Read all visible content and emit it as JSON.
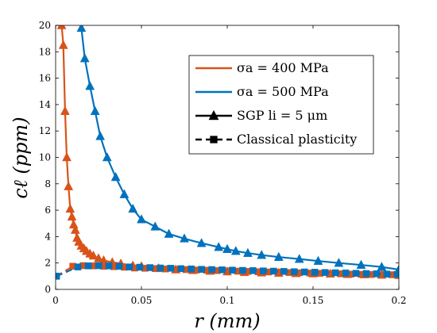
{
  "chart_data": {
    "type": "line",
    "xlabel": "r (mm)",
    "ylabel": "cℓ (ppm)",
    "xlim": [
      0,
      0.2
    ],
    "ylim": [
      0,
      20
    ],
    "xticks": [
      0,
      0.05,
      0.1,
      0.15,
      0.2
    ],
    "xtick_labels": [
      "0",
      "0.05",
      "0.1",
      "0.15",
      "0.2"
    ],
    "yticks": [
      0,
      2,
      4,
      6,
      8,
      10,
      12,
      14,
      16,
      18,
      20
    ],
    "ytick_labels": [
      "0",
      "2",
      "4",
      "6",
      "8",
      "10",
      "12",
      "14",
      "16",
      "18",
      "20"
    ],
    "grid": false,
    "legend_position": "top-right",
    "colors": {
      "orange": "#D95319",
      "blue": "#0072BD",
      "black": "#000000"
    },
    "legend": [
      {
        "label": "σa = 400 MPa",
        "color": "#D95319",
        "style": "solid",
        "marker": "none"
      },
      {
        "label": "σa = 500 MPa",
        "color": "#0072BD",
        "style": "solid",
        "marker": "none"
      },
      {
        "label": "SGP li = 5 μm",
        "color": "#000000",
        "style": "solid",
        "marker": "triangle"
      },
      {
        "label": "Classical plasticity",
        "color": "#000000",
        "style": "dashed",
        "marker": "square"
      }
    ],
    "series": [
      {
        "color": "#D95319",
        "style": "solid",
        "marker": "triangle",
        "x": [
          0.0035,
          0.0045,
          0.0055,
          0.0065,
          0.0075,
          0.0085,
          0.0095,
          0.0105,
          0.0115,
          0.0125,
          0.0135,
          0.015,
          0.0165,
          0.018,
          0.02,
          0.022,
          0.025,
          0.028,
          0.033,
          0.038,
          0.045,
          0.05,
          0.06,
          0.07,
          0.08,
          0.09,
          0.1,
          0.11,
          0.12,
          0.13,
          0.14,
          0.15,
          0.16,
          0.17,
          0.18,
          0.19,
          0.2
        ],
        "y": [
          20,
          18.5,
          13.5,
          10,
          7.8,
          6.1,
          5.5,
          4.9,
          4.5,
          3.9,
          3.6,
          3.3,
          3.1,
          2.9,
          2.7,
          2.55,
          2.35,
          2.2,
          2.05,
          1.95,
          1.8,
          1.75,
          1.6,
          1.5,
          1.45,
          1.4,
          1.35,
          1.3,
          1.27,
          1.25,
          1.22,
          1.2,
          1.18,
          1.15,
          1.13,
          1.1,
          1.08
        ]
      },
      {
        "color": "#0072BD",
        "style": "solid",
        "marker": "triangle",
        "x": [
          0.015,
          0.017,
          0.02,
          0.023,
          0.026,
          0.03,
          0.035,
          0.04,
          0.045,
          0.05,
          0.058,
          0.066,
          0.075,
          0.085,
          0.095,
          0.1,
          0.105,
          0.112,
          0.12,
          0.13,
          0.142,
          0.153,
          0.165,
          0.178,
          0.19,
          0.2
        ],
        "y": [
          19.8,
          17.5,
          15.4,
          13.5,
          11.6,
          10.0,
          8.5,
          7.2,
          6.1,
          5.3,
          4.75,
          4.2,
          3.85,
          3.5,
          3.2,
          3.05,
          2.9,
          2.75,
          2.6,
          2.45,
          2.3,
          2.15,
          2.0,
          1.85,
          1.7,
          1.5
        ]
      },
      {
        "color": "#D95319",
        "style": "dashed",
        "marker": "square",
        "x": [
          0.0005,
          0.01,
          0.016,
          0.022,
          0.028,
          0.034,
          0.04,
          0.046,
          0.052,
          0.058,
          0.064,
          0.07,
          0.076,
          0.082,
          0.088,
          0.094,
          0.1,
          0.106,
          0.112,
          0.118,
          0.124,
          0.13,
          0.136,
          0.142,
          0.148,
          0.154,
          0.16,
          0.166,
          0.172,
          0.178,
          0.184,
          0.19,
          0.196,
          0.2
        ],
        "y": [
          1.0,
          1.75,
          1.8,
          1.78,
          1.75,
          1.72,
          1.68,
          1.62,
          1.6,
          1.58,
          1.55,
          1.52,
          1.5,
          1.47,
          1.45,
          1.42,
          1.4,
          1.38,
          1.36,
          1.34,
          1.32,
          1.3,
          1.28,
          1.26,
          1.24,
          1.22,
          1.2,
          1.18,
          1.16,
          1.14,
          1.13,
          1.12,
          1.11,
          1.1
        ]
      },
      {
        "color": "#0072BD",
        "style": "dashed",
        "marker": "square",
        "x": [
          0.0005,
          0.013,
          0.019,
          0.025,
          0.031,
          0.037,
          0.043,
          0.049,
          0.055,
          0.061,
          0.067,
          0.073,
          0.079,
          0.085,
          0.091,
          0.097,
          0.103,
          0.109,
          0.115,
          0.121,
          0.127,
          0.133,
          0.139,
          0.145,
          0.151,
          0.157,
          0.163,
          0.169,
          0.175,
          0.181,
          0.187,
          0.193,
          0.199
        ],
        "y": [
          1.0,
          1.7,
          1.78,
          1.8,
          1.78,
          1.75,
          1.7,
          1.68,
          1.65,
          1.62,
          1.6,
          1.57,
          1.55,
          1.52,
          1.5,
          1.48,
          1.46,
          1.44,
          1.42,
          1.4,
          1.38,
          1.36,
          1.34,
          1.32,
          1.3,
          1.28,
          1.26,
          1.24,
          1.22,
          1.2,
          1.18,
          1.16,
          1.14
        ]
      }
    ]
  }
}
